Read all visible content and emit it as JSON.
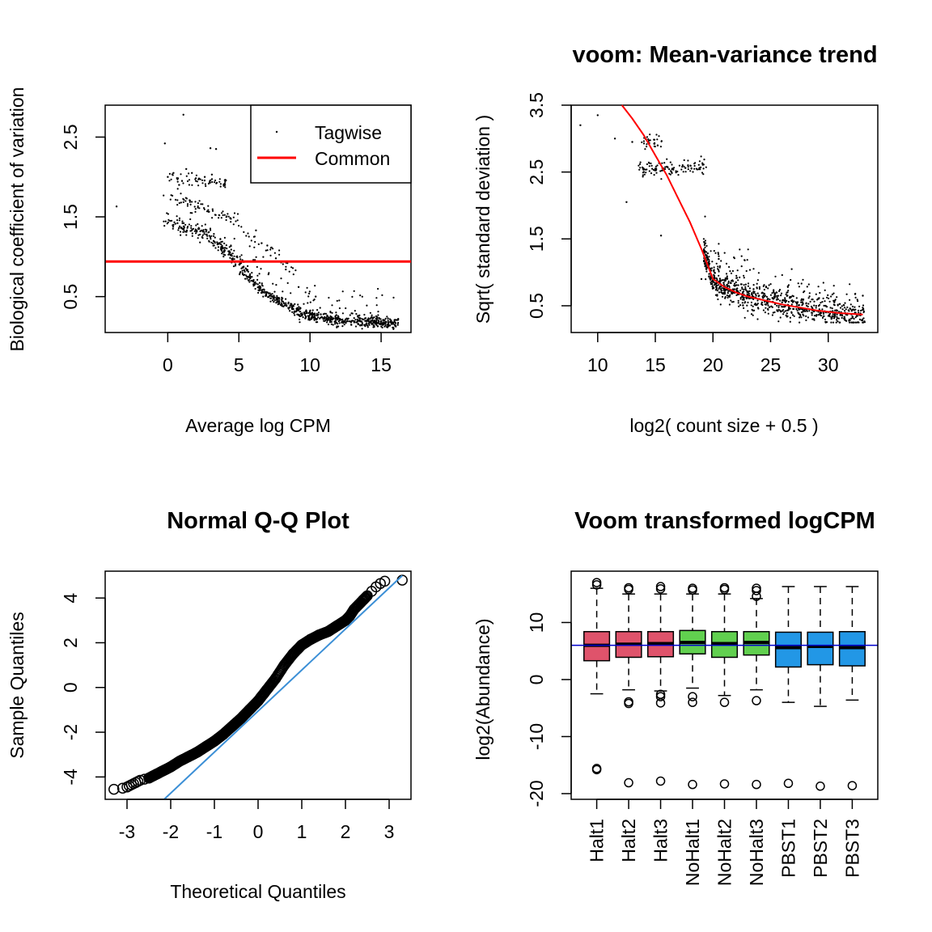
{
  "chart_data": [
    {
      "type": "scatter",
      "title": "",
      "xlabel": "Average log CPM",
      "ylabel": "Biological coefficient of variation",
      "xlim": [
        -4.4,
        17.1
      ],
      "ylim": [
        0.05,
        2.9
      ],
      "xticks": [
        0,
        5,
        10,
        15
      ],
      "yticks": [
        0.5,
        1.5,
        2.5
      ],
      "ytick_labels": [
        "0.5",
        "1.5",
        "2.5"
      ],
      "legend": {
        "placement": "top-right",
        "entries": [
          "Tagwise",
          "Common"
        ]
      },
      "common_bcv": 0.94,
      "colors": {
        "points": "#000000",
        "common": "#ff0000"
      },
      "series": [
        {
          "name": "Tagwise",
          "x": [
            -3.6,
            1.1,
            -0.2,
            0.0,
            0.4,
            0.8,
            1.3,
            1.7,
            2.2,
            2.6,
            3.1,
            3.0,
            3.4,
            4.4,
            6.2,
            6.6,
            7.0,
            7.6,
            8.3,
            9.2,
            10.4,
            16.0,
            16.2
          ],
          "y": [
            1.63,
            2.78,
            2.42,
            2.0,
            2.05,
            1.9,
            2.1,
            2.05,
            1.98,
            2.0,
            2.03,
            2.36,
            2.35,
            1.48,
            1.33,
            1.17,
            1.14,
            0.98,
            0.84,
            0.62,
            0.5,
            0.17,
            0.22
          ]
        }
      ],
      "trend": {
        "x": [
          -0.3,
          1.0,
          2.0,
          3.0,
          4.0,
          5.0,
          6.0,
          7.0,
          8.0,
          9.0,
          10.0,
          11.0,
          12.0,
          13.0,
          14.0,
          15.0,
          16.0
        ],
        "y": [
          1.45,
          1.38,
          1.33,
          1.25,
          1.1,
          0.9,
          0.7,
          0.52,
          0.42,
          0.33,
          0.27,
          0.23,
          0.21,
          0.2,
          0.19,
          0.18,
          0.17
        ]
      }
    },
    {
      "type": "scatter",
      "title": "voom: Mean-variance trend",
      "xlabel": "log2( count size + 0.5 )",
      "ylabel": "Sqrt( standard deviation )",
      "xlim": [
        7.7,
        34.3
      ],
      "ylim": [
        0.1,
        3.5
      ],
      "xticks": [
        10,
        15,
        20,
        25,
        30
      ],
      "yticks": [
        0.5,
        1.5,
        2.5,
        3.5
      ],
      "ytick_labels": [
        "0.5",
        "1.5",
        "2.5",
        "3.5"
      ],
      "colors": {
        "points": "#000000",
        "trend": "#ff0000"
      },
      "series": [
        {
          "name": "",
          "x": [
            8.5,
            10.0,
            11.5,
            13.0,
            14.0,
            15.0,
            12.5,
            15.5,
            19.0,
            20.5,
            22.0,
            24.0,
            26.0,
            28.0,
            30.0,
            33.0
          ],
          "y": [
            3.2,
            3.35,
            3.0,
            2.95,
            2.5,
            2.55,
            2.05,
            1.55,
            0.9,
            1.2,
            0.85,
            0.65,
            0.55,
            0.45,
            0.4,
            0.65
          ]
        }
      ],
      "trend": {
        "x": [
          12.1,
          13.0,
          14.0,
          15.0,
          16.0,
          17.0,
          18.0,
          19.0,
          20.0,
          21.0,
          22.0,
          23.0,
          24.0,
          25.0,
          26.0,
          27.0,
          28.0,
          29.0,
          30.0,
          31.0,
          32.0,
          33.0
        ],
        "y": [
          3.5,
          3.3,
          3.05,
          2.75,
          2.45,
          2.1,
          1.75,
          1.35,
          0.9,
          0.78,
          0.7,
          0.64,
          0.6,
          0.56,
          0.52,
          0.49,
          0.46,
          0.43,
          0.41,
          0.39,
          0.38,
          0.37
        ]
      }
    },
    {
      "type": "scatter",
      "title": "Normal Q-Q Plot",
      "xlabel": "Theoretical Quantiles",
      "ylabel": "Sample Quantiles",
      "xlim": [
        -3.5,
        3.5
      ],
      "ylim": [
        -5.0,
        5.2
      ],
      "xticks": [
        -3,
        -2,
        -1,
        0,
        1,
        2,
        3
      ],
      "yticks": [
        -4,
        -2,
        0,
        2,
        4
      ],
      "colors": {
        "points": "#000000",
        "line": "#3b8fd6"
      },
      "series": [
        {
          "name": "",
          "x": [
            -3.3,
            -3.1,
            -3.0,
            -2.95,
            -2.9,
            -2.85,
            -2.8,
            -2.75,
            -2.7,
            -2.6,
            -2.5,
            -2.4,
            -2.3,
            -2.2,
            -2.1,
            -2.0,
            -1.8,
            -1.6,
            -1.4,
            -1.2,
            -1.0,
            -0.8,
            -0.6,
            -0.4,
            -0.2,
            0.0,
            0.2,
            0.4,
            0.6,
            0.8,
            1.0,
            1.2,
            1.4,
            1.6,
            1.8,
            2.0,
            2.1,
            2.2,
            2.3,
            2.4,
            2.5,
            2.6,
            2.7,
            2.8,
            2.9,
            3.3
          ],
          "y": [
            -4.55,
            -4.5,
            -4.45,
            -4.4,
            -4.35,
            -4.3,
            -4.25,
            -4.2,
            -4.15,
            -4.1,
            -4.05,
            -3.95,
            -3.85,
            -3.75,
            -3.65,
            -3.55,
            -3.3,
            -3.1,
            -2.9,
            -2.65,
            -2.4,
            -2.1,
            -1.75,
            -1.4,
            -1.0,
            -0.6,
            -0.1,
            0.4,
            1.0,
            1.5,
            1.9,
            2.15,
            2.35,
            2.5,
            2.75,
            3.0,
            3.2,
            3.5,
            3.7,
            3.9,
            4.1,
            4.3,
            4.5,
            4.65,
            4.75,
            4.8
          ]
        }
      ],
      "qqline": {
        "x": [
          -2.15,
          3.3
        ],
        "y": [
          -5.0,
          5.0
        ]
      }
    },
    {
      "type": "box",
      "title": "Voom transformed logCPM",
      "xlabel": "",
      "ylabel": "log2(Abundance)",
      "ylim": [
        -21,
        19
      ],
      "yticks": [
        -20,
        -10,
        0,
        10
      ],
      "categories": [
        "Halt1",
        "Halt2",
        "Halt3",
        "NoHalt1",
        "NoHalt2",
        "NoHalt3",
        "PBST1",
        "PBST2",
        "PBST3"
      ],
      "median_line": 6.0,
      "colors": {
        "Halt": "#df536b",
        "NoHalt": "#61d04f",
        "PBST": "#2297e6",
        "median_line": "#0000cc"
      },
      "boxes": [
        {
          "q1": 3.3,
          "median": 6.0,
          "q3": 8.4,
          "lo": -2.5,
          "hi": 16.0,
          "outliers": [
            16.6,
            17.0,
            -15.8,
            -15.6
          ]
        },
        {
          "q1": 3.9,
          "median": 6.2,
          "q3": 8.4,
          "lo": -1.8,
          "hi": 15.0,
          "outliers": [
            15.8,
            16.1,
            -3.9,
            -4.2,
            -18.1
          ]
        },
        {
          "q1": 4.0,
          "median": 6.3,
          "q3": 8.4,
          "lo": -2.0,
          "hi": 15.0,
          "outliers": [
            15.9,
            16.3,
            -2.6,
            -3.0,
            -4.1,
            -17.8
          ]
        },
        {
          "q1": 4.5,
          "median": 6.5,
          "q3": 8.6,
          "lo": -1.5,
          "hi": 15.0,
          "outliers": [
            15.7,
            16.0,
            -3.0,
            -4.0,
            -18.4
          ]
        },
        {
          "q1": 3.9,
          "median": 6.3,
          "q3": 8.4,
          "lo": -2.8,
          "hi": 15.0,
          "outliers": [
            15.8,
            16.1,
            -4.0,
            -18.3
          ]
        },
        {
          "q1": 4.3,
          "median": 6.5,
          "q3": 8.4,
          "lo": -1.8,
          "hi": 14.2,
          "outliers": [
            14.6,
            15.6,
            16.0,
            -3.7,
            -18.4
          ]
        },
        {
          "q1": 2.2,
          "median": 5.6,
          "q3": 8.3,
          "lo": -4.0,
          "hi": 16.3,
          "outliers": [
            -18.2
          ]
        },
        {
          "q1": 2.6,
          "median": 5.8,
          "q3": 8.3,
          "lo": -4.7,
          "hi": 16.3,
          "outliers": [
            -18.7
          ]
        },
        {
          "q1": 2.4,
          "median": 5.6,
          "q3": 8.4,
          "lo": -3.6,
          "hi": 16.3,
          "outliers": [
            -18.6
          ]
        }
      ]
    }
  ]
}
